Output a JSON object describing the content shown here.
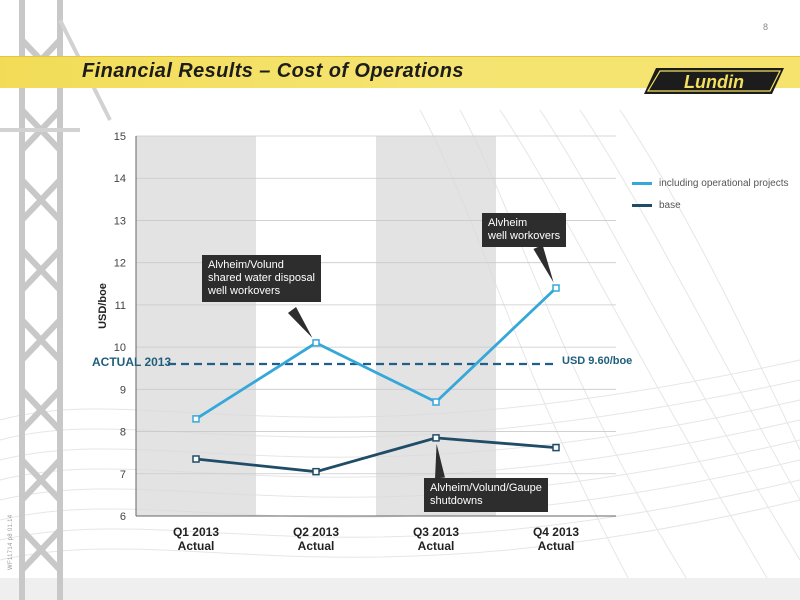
{
  "page_number": "8",
  "slide_title": "Financial Results – Cost of Operations",
  "logo_text": "Lundin",
  "footer_code": "WF11714 p8 01.14",
  "colors": {
    "including_series": "#35a7d9",
    "base_series": "#1f4d68",
    "band": "#d9d9d9",
    "title_band": "#f3df5f",
    "callout_bg": "#2d2d2d",
    "reference_line": "#1f5f8a"
  },
  "chart_data": {
    "type": "line",
    "categories": [
      "Q1 2013\nActual",
      "Q2 2013\nActual",
      "Q3 2013\nActual",
      "Q4 2013\nActual"
    ],
    "ylabel": "USD/boe",
    "ylim": [
      6,
      15
    ],
    "yticks": [
      6,
      7,
      8,
      9,
      10,
      11,
      12,
      13,
      14,
      15
    ],
    "grid": true,
    "series": [
      {
        "name": "including operational projects",
        "values": [
          8.3,
          10.1,
          8.7,
          11.4
        ]
      },
      {
        "name": "base",
        "values": [
          7.35,
          7.05,
          7.85,
          7.62
        ]
      }
    ],
    "reference_line": {
      "value": 9.6,
      "left_label": "ACTUAL 2013",
      "right_label": "USD 9.60/boe"
    },
    "annotations": [
      {
        "text": "Alvheim/Volund\nshared water  disposal\nwell workovers",
        "series": 0,
        "category": 1
      },
      {
        "text": "Alvheim\nwell workovers",
        "series": 0,
        "category": 3
      },
      {
        "text": "Alvheim/Volund/Gaupe\nshutdowns",
        "series": 1,
        "category": 2
      }
    ],
    "legend_position": "right"
  }
}
